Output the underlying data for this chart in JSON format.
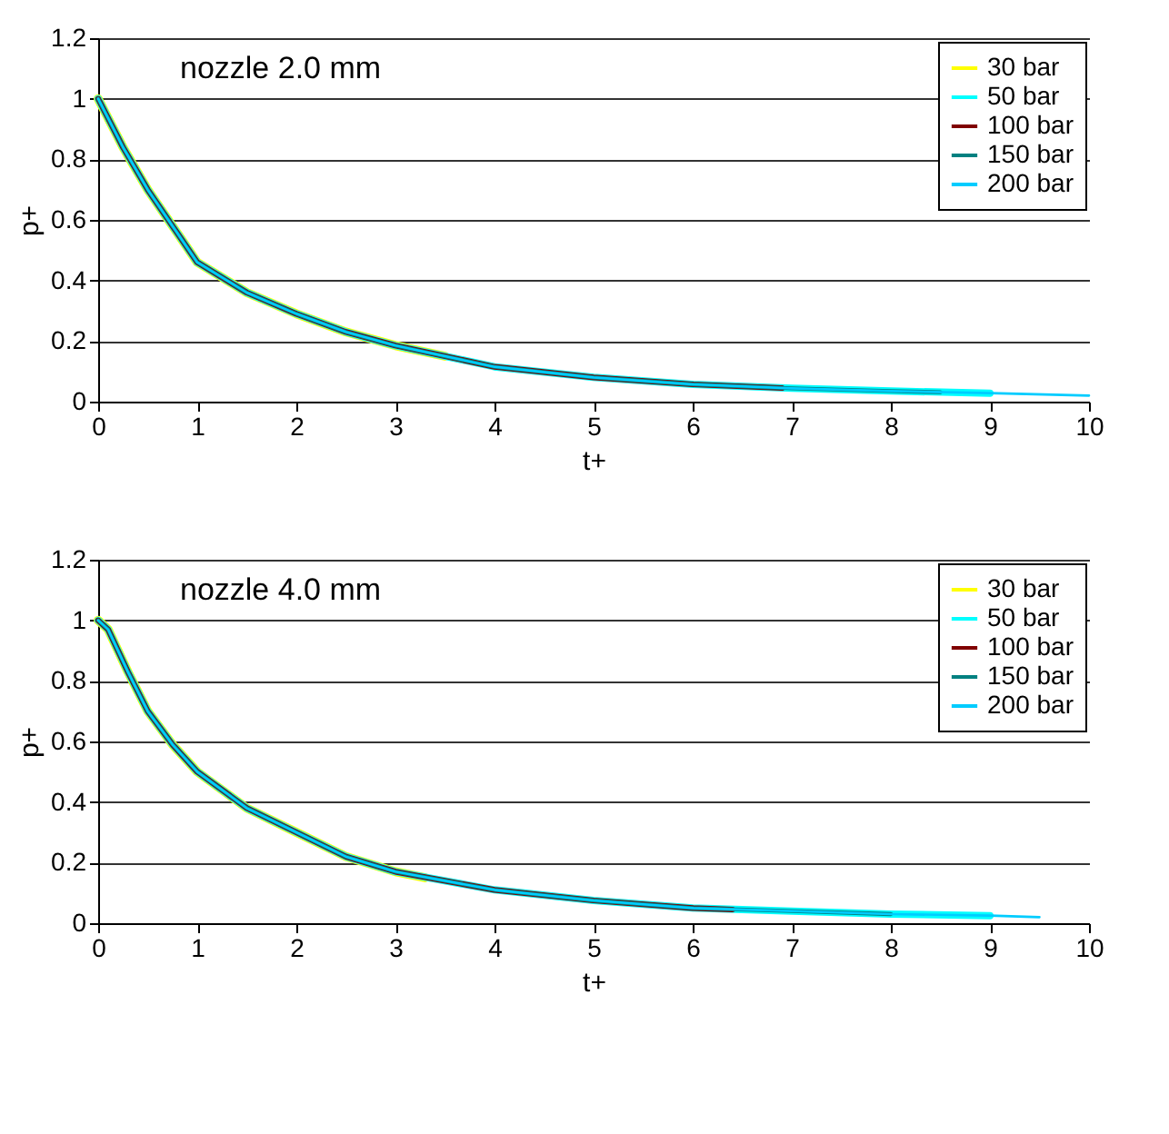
{
  "chart_data": [
    {
      "type": "line",
      "xlabel": "t+",
      "ylabel": "p+",
      "annotations": [
        "nozzle  2.0 mm"
      ],
      "xlim": [
        0,
        10
      ],
      "xticks": [
        0,
        1,
        2,
        3,
        4,
        5,
        6,
        7,
        8,
        9,
        10
      ],
      "ylim": [
        0,
        1.2
      ],
      "yticks": [
        0,
        0.2,
        0.4,
        0.6,
        0.8,
        1,
        1.2
      ],
      "grid": "y",
      "legend": "top right",
      "series": [
        {
          "name": "30 bar",
          "color": "#ffff00",
          "x": [
            0,
            0.25,
            0.5,
            0.75,
            1,
            1.5,
            2,
            2.5,
            3,
            3.5
          ],
          "values": [
            1,
            0.84,
            0.7,
            0.58,
            0.46,
            0.36,
            0.29,
            0.23,
            0.185,
            0.15
          ]
        },
        {
          "name": "50 bar",
          "color": "#00ffff",
          "x": [
            0,
            0.25,
            0.5,
            0.75,
            1,
            1.5,
            2,
            2.5,
            3,
            4,
            5,
            6,
            7,
            8,
            9
          ],
          "values": [
            1,
            0.84,
            0.7,
            0.58,
            0.46,
            0.36,
            0.29,
            0.23,
            0.185,
            0.115,
            0.08,
            0.057,
            0.044,
            0.035,
            0.028
          ]
        },
        {
          "name": "100 bar",
          "color": "#800000",
          "x": [
            0,
            0.25,
            0.5,
            0.75,
            1,
            1.5,
            2,
            2.5,
            3,
            4,
            5,
            6,
            6.9
          ],
          "values": [
            1,
            0.84,
            0.7,
            0.58,
            0.46,
            0.36,
            0.29,
            0.23,
            0.185,
            0.115,
            0.08,
            0.057,
            0.045
          ]
        },
        {
          "name": "150 bar",
          "color": "#008080",
          "x": [
            0,
            0.25,
            0.5,
            0.75,
            1,
            1.5,
            2,
            2.5,
            3,
            4,
            5,
            6,
            7,
            8,
            8.5
          ],
          "values": [
            1,
            0.84,
            0.7,
            0.58,
            0.46,
            0.36,
            0.29,
            0.23,
            0.185,
            0.115,
            0.08,
            0.057,
            0.044,
            0.035,
            0.031
          ]
        },
        {
          "name": "200 bar",
          "color": "#00ccff",
          "x": [
            0,
            0.25,
            0.5,
            0.75,
            1,
            1.5,
            2,
            2.5,
            3,
            4,
            5,
            6,
            7,
            8,
            9,
            10
          ],
          "values": [
            1,
            0.84,
            0.7,
            0.58,
            0.46,
            0.36,
            0.29,
            0.23,
            0.185,
            0.115,
            0.08,
            0.057,
            0.044,
            0.035,
            0.028,
            0.02
          ]
        }
      ]
    },
    {
      "type": "line",
      "xlabel": "t+",
      "ylabel": "p+",
      "annotations": [
        "nozzle  4.0 mm"
      ],
      "xlim": [
        0,
        10
      ],
      "xticks": [
        0,
        1,
        2,
        3,
        4,
        5,
        6,
        7,
        8,
        9,
        10
      ],
      "ylim": [
        0,
        1.2
      ],
      "yticks": [
        0,
        0.2,
        0.4,
        0.6,
        0.8,
        1,
        1.2
      ],
      "grid": "y",
      "legend": "top right",
      "series": [
        {
          "name": "30 bar",
          "color": "#ffff00",
          "x": [
            0,
            0.1,
            0.3,
            0.5,
            0.75,
            1,
            1.5,
            2,
            2.5,
            3,
            3.3
          ],
          "values": [
            1,
            0.97,
            0.83,
            0.7,
            0.59,
            0.5,
            0.38,
            0.3,
            0.22,
            0.17,
            0.15
          ]
        },
        {
          "name": "50 bar",
          "color": "#00ffff",
          "x": [
            0,
            0.1,
            0.3,
            0.5,
            0.75,
            1,
            1.5,
            2,
            2.5,
            3,
            4,
            5,
            6,
            7,
            8,
            9
          ],
          "values": [
            1,
            0.97,
            0.83,
            0.7,
            0.59,
            0.5,
            0.38,
            0.3,
            0.22,
            0.17,
            0.11,
            0.075,
            0.05,
            0.04,
            0.03,
            0.025
          ]
        },
        {
          "name": "100 bar",
          "color": "#800000",
          "x": [
            0,
            0.1,
            0.3,
            0.5,
            0.75,
            1,
            1.5,
            2,
            2.5,
            3,
            4,
            5,
            6,
            6.4
          ],
          "values": [
            1,
            0.97,
            0.83,
            0.7,
            0.59,
            0.5,
            0.38,
            0.3,
            0.22,
            0.17,
            0.11,
            0.075,
            0.05,
            0.045
          ]
        },
        {
          "name": "150 bar",
          "color": "#008080",
          "x": [
            0,
            0.1,
            0.3,
            0.5,
            0.75,
            1,
            1.5,
            2,
            2.5,
            3,
            4,
            5,
            6,
            7,
            8
          ],
          "values": [
            1,
            0.97,
            0.83,
            0.7,
            0.59,
            0.5,
            0.38,
            0.3,
            0.22,
            0.17,
            0.11,
            0.075,
            0.05,
            0.04,
            0.03
          ]
        },
        {
          "name": "200 bar",
          "color": "#00ccff",
          "x": [
            0,
            0.1,
            0.3,
            0.5,
            0.75,
            1,
            1.5,
            2,
            2.5,
            3,
            4,
            5,
            6,
            7,
            8,
            9,
            9.5
          ],
          "values": [
            1,
            0.97,
            0.83,
            0.7,
            0.59,
            0.5,
            0.38,
            0.3,
            0.22,
            0.17,
            0.11,
            0.075,
            0.05,
            0.04,
            0.03,
            0.025,
            0.02
          ]
        }
      ]
    }
  ]
}
